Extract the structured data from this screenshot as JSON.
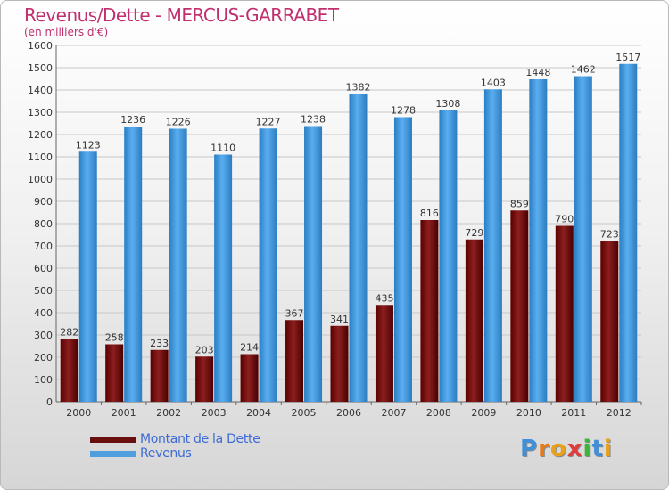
{
  "header": {
    "title": "Revenus/Dette - MERCUS-GARRABET",
    "subtitle": "(en milliers d'€)"
  },
  "colors": {
    "title": "#c0306e",
    "dette": "#7a1414",
    "revenus": "#4f9fdf",
    "legend_text": "#3c6ad6"
  },
  "chart_data": {
    "type": "bar",
    "title": "Revenus/Dette - MERCUS-GARRABET",
    "subtitle": "(en milliers d'€)",
    "xlabel": "",
    "ylabel": "",
    "ylim": [
      0,
      1600
    ],
    "ytick_step": 100,
    "grid": true,
    "legend_position": "bottom-left",
    "categories": [
      "2000",
      "2001",
      "2002",
      "2003",
      "2004",
      "2005",
      "2006",
      "2007",
      "2008",
      "2009",
      "2010",
      "2011",
      "2012"
    ],
    "series": [
      {
        "name": "Montant de la Dette",
        "values": [
          282,
          258,
          233,
          203,
          214,
          367,
          341,
          435,
          816,
          729,
          859,
          790,
          723
        ]
      },
      {
        "name": "Revenus",
        "values": [
          1123,
          1236,
          1226,
          1110,
          1227,
          1238,
          1382,
          1278,
          1308,
          1403,
          1448,
          1462,
          1517
        ]
      }
    ]
  },
  "logo": {
    "text": "Proxiti",
    "letter_colors": [
      "#3f8fd9",
      "#e87a1d",
      "#e8a11d",
      "#e03c3c",
      "#3cb43c",
      "#3f8fd9",
      "#e8a11d"
    ]
  }
}
